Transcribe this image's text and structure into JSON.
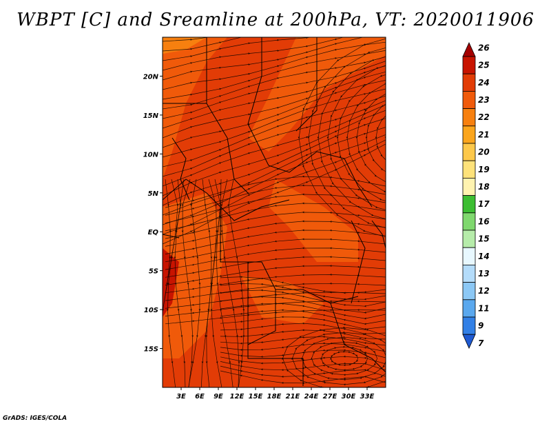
{
  "title": "WBPT [C] and Sreamline at 200hPa, VT: 2020011906",
  "credit": "GrADS: IGES/COLA",
  "map": {
    "lon_range": [
      0,
      36
    ],
    "lat_range": [
      -20,
      25
    ],
    "lon_ticks": [
      "3E",
      "6E",
      "9E",
      "12E",
      "15E",
      "18E",
      "21E",
      "24E",
      "27E",
      "30E",
      "33E"
    ],
    "lon_values": [
      3,
      6,
      9,
      12,
      15,
      18,
      21,
      24,
      27,
      30,
      33
    ],
    "lat_ticks": [
      "20N",
      "15N",
      "10N",
      "5N",
      "EQ",
      "5S",
      "10S",
      "15S"
    ],
    "lat_values": [
      20,
      15,
      10,
      5,
      0,
      -5,
      -10,
      -15
    ],
    "background_color": "#e23c06"
  },
  "colorbar": {
    "labels": [
      "26",
      "25",
      "24",
      "23",
      "22",
      "21",
      "20",
      "19",
      "18",
      "17",
      "16",
      "15",
      "14",
      "13",
      "12",
      "11",
      "9",
      "7"
    ],
    "colors": [
      "#a50000",
      "#c81400",
      "#e23c06",
      "#f05a0a",
      "#f7800f",
      "#fba51c",
      "#fdc84a",
      "#fee27a",
      "#fff3b0",
      "#3cbe32",
      "#7fd86e",
      "#b6ecaa",
      "#e8f8ff",
      "#b4dcfa",
      "#8cc8f5",
      "#5aa8ee",
      "#3280e6",
      "#1e5ad2"
    ]
  }
}
